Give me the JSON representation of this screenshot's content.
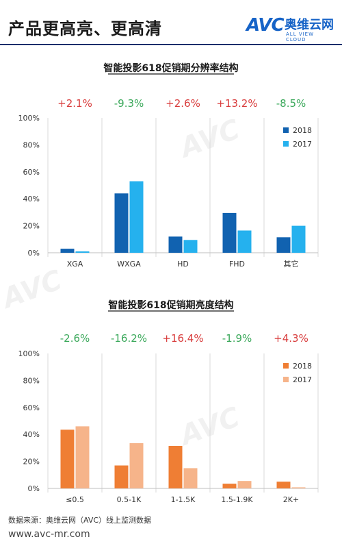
{
  "header": {
    "title": "产品更高亮、更高清",
    "logo_mark": "AVC",
    "logo_cn": "奥维云网",
    "logo_en": "ALL VIEW CLOUD"
  },
  "footer": {
    "source": "数据来源：奥维云网（AVC）线上监测数据",
    "url": "www.avc-mr.com"
  },
  "colors": {
    "increase": "#d83b3b",
    "decrease": "#3aa85a",
    "chart1_2018": "#1162b0",
    "chart1_2017": "#25b1ee",
    "chart2_2018": "#ef7e34",
    "chart2_2017": "#f6b48a"
  },
  "chart_data": [
    {
      "type": "bar",
      "title": "智能投影618促销期分辨率结构",
      "categories": [
        "XGA",
        "WXGA",
        "HD",
        "FHD",
        "其它"
      ],
      "yoy_labels": [
        "+2.1%",
        "-9.3%",
        "+2.6%",
        "+13.2%",
        "-8.5%"
      ],
      "series": [
        {
          "name": "2018",
          "values": [
            3,
            44,
            12,
            29.5,
            11.5
          ]
        },
        {
          "name": "2017",
          "values": [
            1,
            53,
            9.5,
            16.5,
            20
          ]
        }
      ],
      "ylim": [
        0,
        100
      ],
      "yticks": [
        "0%",
        "20%",
        "40%",
        "60%",
        "80%",
        "100%"
      ],
      "legend_position": "top-right",
      "grid": "vertical category dividers"
    },
    {
      "type": "bar",
      "title": "智能投影618促销期亮度结构",
      "categories": [
        "≤0.5",
        "0.5-1K",
        "1-1.5K",
        "1.5-1.9K",
        "2K+"
      ],
      "yoy_labels": [
        "-2.6%",
        "-16.2%",
        "+16.4%",
        "-1.9%",
        "+4.3%"
      ],
      "series": [
        {
          "name": "2018",
          "values": [
            43.5,
            17,
            31.5,
            3.5,
            5
          ]
        },
        {
          "name": "2017",
          "values": [
            46,
            33.5,
            15,
            5.5,
            0.8
          ]
        }
      ],
      "ylim": [
        0,
        100
      ],
      "yticks": [
        "0%",
        "20%",
        "40%",
        "60%",
        "80%",
        "100%"
      ],
      "legend_position": "top-right",
      "grid": "vertical category dividers"
    }
  ]
}
